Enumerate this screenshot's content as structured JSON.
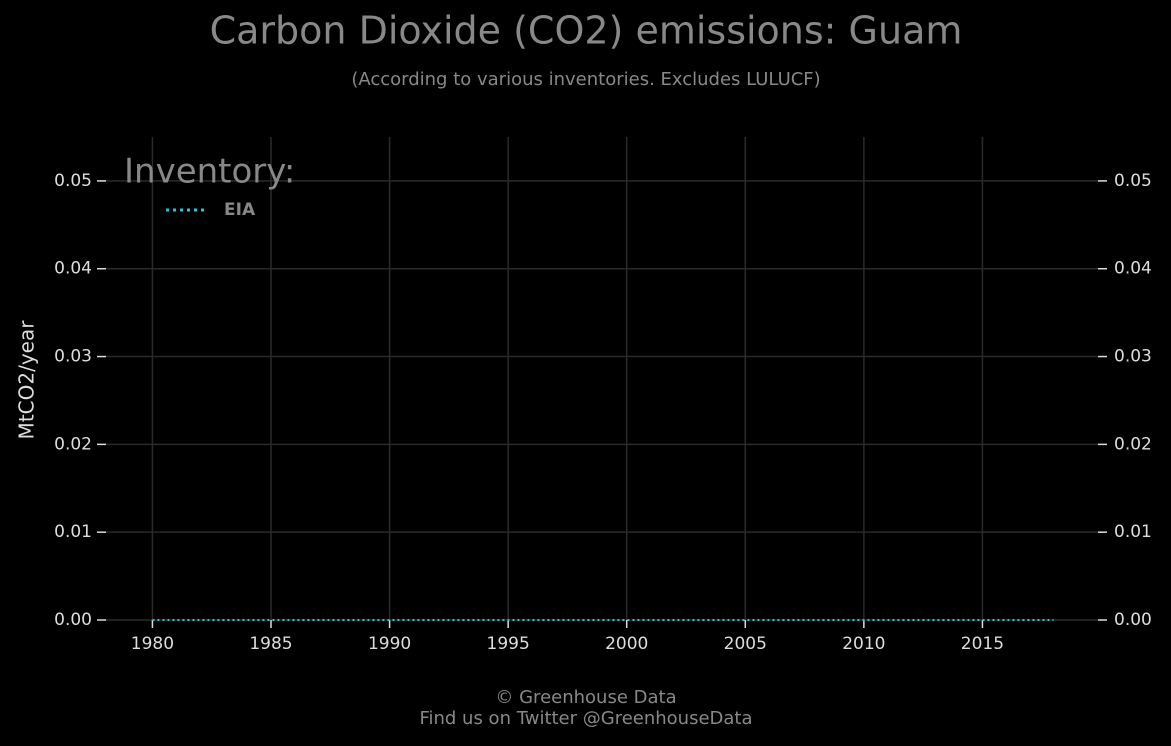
{
  "chart_data": {
    "type": "line",
    "title": "Carbon Dioxide (CO2) emissions: Guam",
    "subtitle": "(According to various inventories. Excludes LULUCF)",
    "y_label": "MtCO2/year",
    "legend_title": "Inventory:",
    "legend_position": "upper left",
    "grid": true,
    "x": [
      1980,
      1981,
      1982,
      1983,
      1984,
      1985,
      1986,
      1987,
      1988,
      1989,
      1990,
      1991,
      1992,
      1993,
      1994,
      1995,
      1996,
      1997,
      1998,
      1999,
      2000,
      2001,
      2002,
      2003,
      2004,
      2005,
      2006,
      2007,
      2008,
      2009,
      2010,
      2011,
      2012,
      2013,
      2014,
      2015,
      2016,
      2017,
      2018
    ],
    "series": [
      {
        "name": "EIA",
        "color": "#22c7d6",
        "values": [
          0,
          0,
          0,
          0,
          0,
          0,
          0,
          0,
          0,
          0,
          0,
          0,
          0,
          0,
          0,
          0,
          0,
          0,
          0,
          0,
          0,
          0,
          0,
          0,
          0,
          0,
          0,
          0,
          0,
          0,
          0,
          0,
          0,
          0,
          0,
          0,
          0,
          0,
          0
        ]
      }
    ],
    "xlim": [
      1978,
      2020
    ],
    "xticks": [
      1980,
      1985,
      1990,
      1995,
      2000,
      2005,
      2010,
      2015
    ],
    "ylim": [
      0,
      0.055
    ],
    "yticks": [
      {
        "value": 0,
        "label": "0.00"
      },
      {
        "value": 0.01,
        "label": "0.01"
      },
      {
        "value": 0.02,
        "label": "0.02"
      },
      {
        "value": 0.03,
        "label": "0.03"
      },
      {
        "value": 0.04,
        "label": "0.04"
      },
      {
        "value": 0.05,
        "label": "0.05"
      }
    ],
    "footer": [
      "© Greenhouse Data",
      "Find us on Twitter @GreenhouseData"
    ]
  }
}
